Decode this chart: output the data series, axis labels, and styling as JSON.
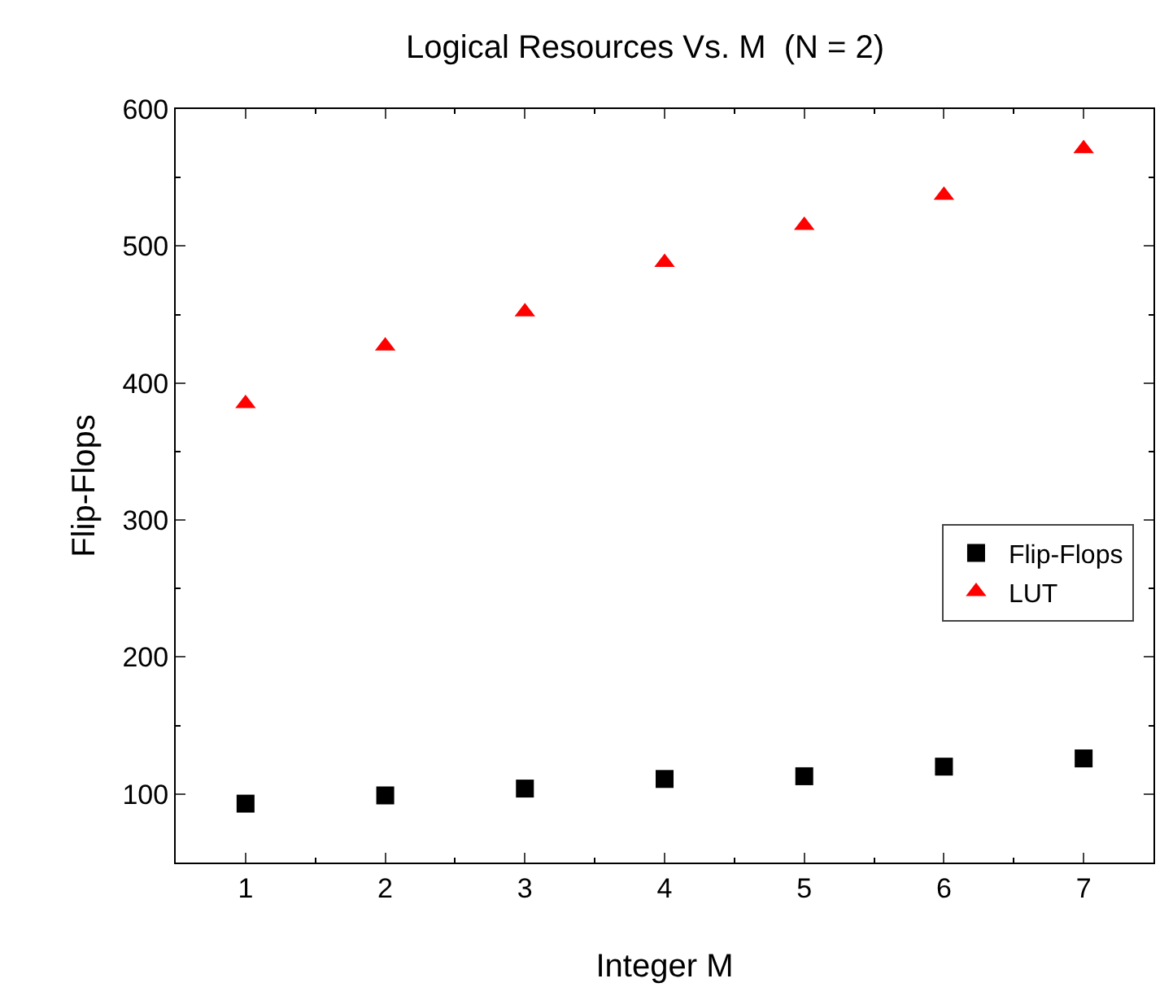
{
  "chart_data": {
    "type": "scatter",
    "title": "Logical Resources Vs. M  (N = 2)",
    "xlabel": "Integer M",
    "ylabel": "Flip-Flops",
    "x": [
      1,
      2,
      3,
      4,
      5,
      6,
      7
    ],
    "series": [
      {
        "name": "Flip-Flops",
        "color": "#000000",
        "marker": "square",
        "values": [
          93,
          99,
          104,
          111,
          113,
          120,
          126
        ]
      },
      {
        "name": "LUT",
        "color": "#ff0000",
        "marker": "triangle",
        "values": [
          385,
          427,
          452,
          488,
          515,
          537,
          571
        ]
      }
    ],
    "xlim": [
      0.5,
      7.5
    ],
    "xticks": [
      1,
      2,
      3,
      4,
      5,
      6,
      7
    ],
    "ylim": [
      50,
      600
    ],
    "yticks": [
      100,
      200,
      300,
      400,
      500,
      600
    ],
    "grid": false,
    "legend": "bottom right"
  }
}
